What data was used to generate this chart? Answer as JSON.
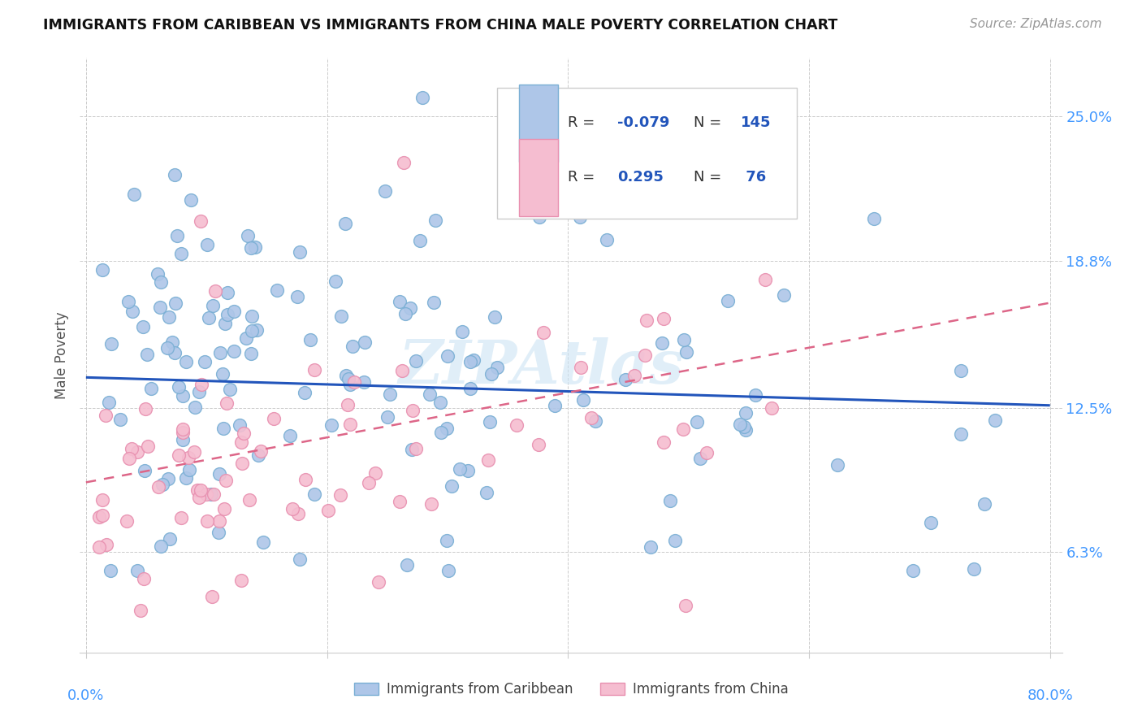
{
  "title": "IMMIGRANTS FROM CARIBBEAN VS IMMIGRANTS FROM CHINA MALE POVERTY CORRELATION CHART",
  "source": "Source: ZipAtlas.com",
  "ylabel": "Male Poverty",
  "ytick_labels": [
    "6.3%",
    "12.5%",
    "18.8%",
    "25.0%"
  ],
  "ytick_values": [
    0.063,
    0.125,
    0.188,
    0.25
  ],
  "xlim": [
    0.0,
    0.8
  ],
  "ylim": [
    0.02,
    0.275
  ],
  "caribbean_color": "#aec6e8",
  "caribbean_edge": "#7aafd4",
  "china_color": "#f5bdd0",
  "china_edge": "#e890b0",
  "trend_caribbean_color": "#2255bb",
  "trend_china_color": "#dd6688",
  "legend_R_caribbean": "-0.079",
  "legend_N_caribbean": "145",
  "legend_R_china": "0.295",
  "legend_N_china": "76",
  "watermark": "ZIPAtlas",
  "trend_carib_x0": 0.0,
  "trend_carib_x1": 0.8,
  "trend_carib_y0": 0.138,
  "trend_carib_y1": 0.126,
  "trend_china_x0": 0.0,
  "trend_china_x1": 0.8,
  "trend_china_y0": 0.093,
  "trend_china_y1": 0.17
}
